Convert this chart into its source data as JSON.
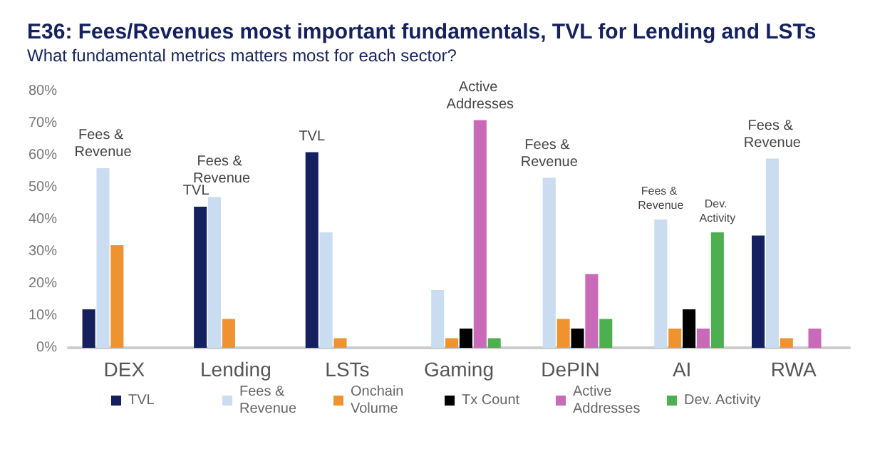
{
  "chart_data": {
    "type": "bar",
    "title": "E36: Fees/Revenues most important fundamentals, TVL for Lending and LSTs",
    "subtitle": "What fundamental metrics matters most for each sector?",
    "categories": [
      "DEX",
      "Lending",
      "LSTs",
      "Gaming",
      "DePIN",
      "AI",
      "RWA"
    ],
    "series": [
      {
        "name": "TVL",
        "color": "#14215e",
        "values": [
          12,
          44,
          61,
          null,
          null,
          null,
          35
        ],
        "value_labels": [
          null,
          "TVL",
          "TVL",
          null,
          null,
          null,
          null
        ]
      },
      {
        "name": "Fees & Revenue",
        "color": "#c9dcf0",
        "values": [
          56,
          47,
          36,
          18,
          53,
          40,
          59
        ],
        "value_labels": [
          "Fees & Revenue",
          "Fees & Revenue",
          null,
          null,
          "Fees & Revenue",
          "Fees & Revenue",
          "Fees & Revenue"
        ]
      },
      {
        "name": "Onchain Volume",
        "color": "#ef9330",
        "values": [
          32,
          9,
          3,
          3,
          9,
          6,
          3
        ]
      },
      {
        "name": "Tx Count",
        "color": "#000000",
        "values": [
          null,
          null,
          null,
          6,
          6,
          12,
          null
        ]
      },
      {
        "name": "Active Addresses",
        "color": "#c96ab8",
        "values": [
          null,
          null,
          null,
          71,
          23,
          6,
          6
        ],
        "value_labels": [
          null,
          null,
          null,
          "Active Addresses",
          null,
          null,
          null
        ]
      },
      {
        "name": "Dev. Activity",
        "color": "#4caf50",
        "values": [
          null,
          null,
          null,
          3,
          9,
          36,
          null
        ],
        "value_labels": [
          null,
          null,
          null,
          null,
          null,
          "Dev. Activity",
          null
        ]
      }
    ],
    "ylim": [
      0,
      80
    ],
    "yticks": [
      {
        "value": 0,
        "label": "0%"
      },
      {
        "value": 10,
        "label": "10%"
      },
      {
        "value": 20,
        "label": "20%"
      },
      {
        "value": 30,
        "label": "30%"
      },
      {
        "value": 40,
        "label": "40%"
      },
      {
        "value": 50,
        "label": "50%"
      },
      {
        "value": 60,
        "label": "60%"
      },
      {
        "value": 70,
        "label": "70%"
      },
      {
        "value": 80,
        "label": "80%"
      }
    ],
    "grid": false,
    "legend": "bottom"
  }
}
